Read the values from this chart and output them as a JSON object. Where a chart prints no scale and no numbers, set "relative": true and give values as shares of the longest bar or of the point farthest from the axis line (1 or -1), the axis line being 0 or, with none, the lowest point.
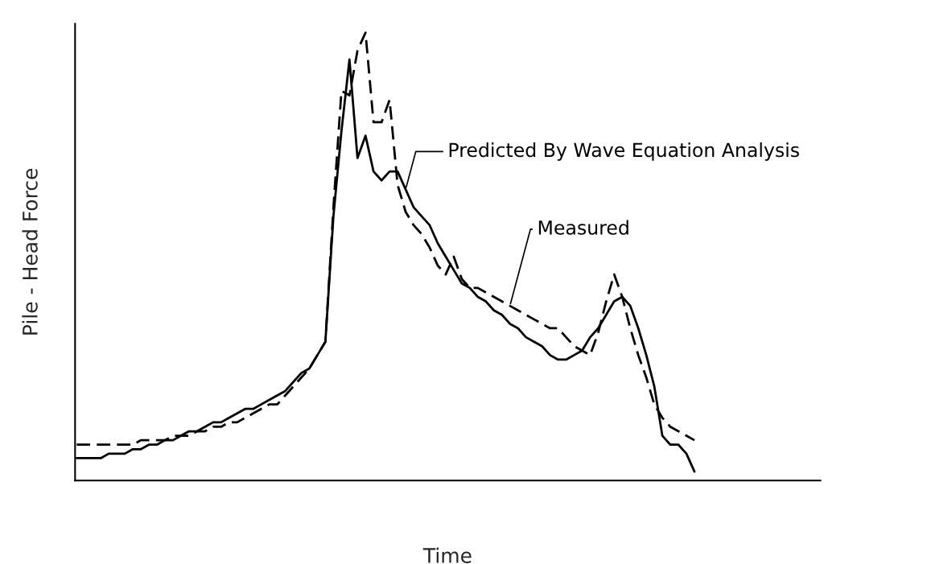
{
  "chart_data": {
    "type": "line",
    "relative": true,
    "xlabel": "Time",
    "ylabel": "Pile - Head Force",
    "legend": false,
    "categories": [
      null,
      null,
      null,
      null,
      null,
      null,
      null,
      null,
      null,
      null,
      null,
      null,
      null,
      null,
      null,
      null,
      null,
      null,
      null,
      null,
      null,
      null,
      null,
      null,
      null,
      null,
      null,
      null,
      null,
      null,
      null,
      null,
      null,
      null,
      null,
      null,
      null,
      null,
      null,
      null,
      null,
      null,
      null,
      null,
      null,
      null,
      null,
      null,
      null,
      null,
      null,
      null,
      null,
      null,
      null,
      null,
      null,
      null,
      null,
      null,
      null,
      null,
      null,
      null,
      null,
      null,
      null,
      null,
      null,
      null,
      null,
      null,
      null,
      null,
      null,
      null,
      null,
      null
    ],
    "series": [
      {
        "name": "Predicted By Wave Equation Analysis",
        "color": "#000000",
        "line_style": "solid",
        "values": [
          0.05,
          0.05,
          0.05,
          0.05,
          0.06,
          0.06,
          0.06,
          0.07,
          0.07,
          0.08,
          0.08,
          0.09,
          0.09,
          0.1,
          0.11,
          0.11,
          0.12,
          0.13,
          0.13,
          0.14,
          0.15,
          0.16,
          0.16,
          0.17,
          0.18,
          0.19,
          0.2,
          0.22,
          0.24,
          0.25,
          0.28,
          0.31,
          0.59,
          0.78,
          0.94,
          0.72,
          0.77,
          0.69,
          0.67,
          0.69,
          0.69,
          0.65,
          0.61,
          0.59,
          0.57,
          0.53,
          0.5,
          0.47,
          0.44,
          0.43,
          0.41,
          0.4,
          0.38,
          0.37,
          0.35,
          0.34,
          0.32,
          0.31,
          0.3,
          0.28,
          0.27,
          0.27,
          0.28,
          0.29,
          0.32,
          0.34,
          0.37,
          0.4,
          0.41,
          0.39,
          0.34,
          0.28,
          0.21,
          0.1,
          0.08,
          0.08,
          0.06,
          0.02
        ]
      },
      {
        "name": "Measured",
        "color": "#000000",
        "line_style": "dashed",
        "values": [
          0.08,
          0.08,
          0.08,
          0.08,
          0.08,
          0.08,
          0.08,
          0.08,
          0.09,
          0.09,
          0.09,
          0.09,
          0.1,
          0.1,
          0.1,
          0.11,
          0.11,
          0.12,
          0.12,
          0.13,
          0.13,
          0.14,
          0.15,
          0.16,
          0.17,
          0.17,
          0.19,
          0.21,
          0.23,
          0.25,
          0.28,
          0.31,
          0.61,
          0.87,
          0.86,
          0.96,
          1.0,
          0.8,
          0.8,
          0.85,
          0.66,
          0.6,
          0.57,
          0.55,
          0.52,
          0.48,
          0.46,
          0.5,
          0.45,
          0.43,
          0.43,
          0.42,
          0.41,
          0.4,
          0.39,
          0.38,
          0.37,
          0.36,
          0.35,
          0.34,
          0.34,
          0.32,
          0.3,
          0.29,
          0.28,
          0.33,
          0.4,
          0.46,
          0.41,
          0.34,
          0.28,
          0.23,
          0.17,
          0.14,
          0.12,
          0.11,
          0.1,
          0.09
        ]
      }
    ]
  }
}
